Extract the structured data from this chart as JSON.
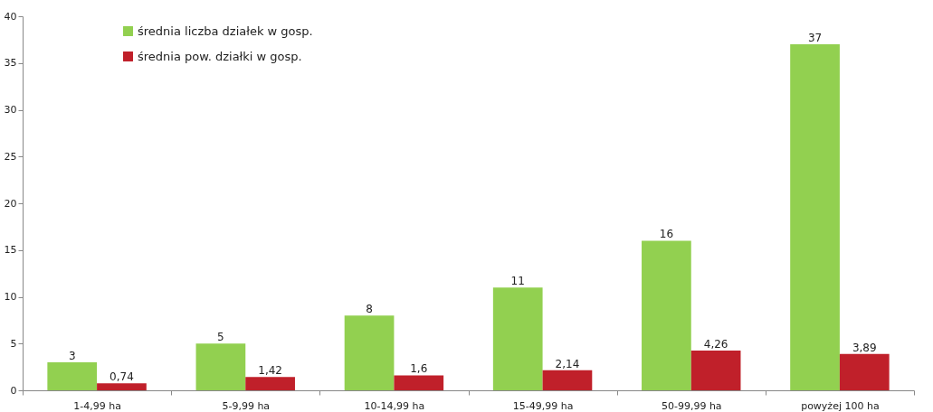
{
  "chart_data": {
    "type": "bar",
    "categories": [
      "1-4,99 ha",
      "5-9,99 ha",
      "10-14,99 ha",
      "15-49,99 ha",
      "50-99,99 ha",
      "powyżej 100 ha"
    ],
    "series": [
      {
        "name": "średnia liczba działek w gosp.",
        "color": "#92d050",
        "values": [
          3,
          5,
          8,
          11,
          16,
          37
        ],
        "value_labels": [
          "3",
          "5",
          "8",
          "11",
          "16",
          "37"
        ]
      },
      {
        "name": "średnia pow. działki w gosp.",
        "color": "#c0202a",
        "values": [
          0.74,
          1.42,
          1.6,
          2.14,
          4.26,
          3.89
        ],
        "value_labels": [
          "0,74",
          "1,42",
          "1,6",
          "2,14",
          "4,26",
          "3,89"
        ]
      }
    ],
    "ylim": [
      0,
      40
    ],
    "yticks": [
      0,
      5,
      10,
      15,
      20,
      25,
      30,
      35,
      40
    ],
    "grid": false,
    "legend": "top left"
  }
}
